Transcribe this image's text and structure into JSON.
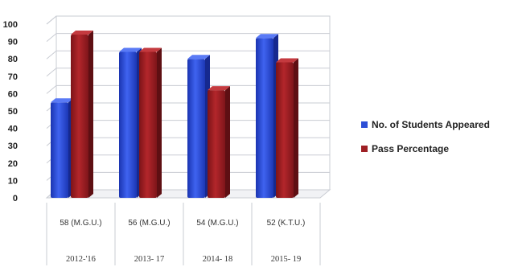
{
  "chart_data": {
    "type": "bar",
    "categories": [
      {
        "line1": "58 (M.G.U.)",
        "line2": "2012-'16"
      },
      {
        "line1": "56 (M.G.U.)",
        "line2": "2013- 17"
      },
      {
        "line1": "54 (M.G.U.)",
        "line2": "2014- 18"
      },
      {
        "line1": "52 (K.T.U.)",
        "line2": "2015- 19"
      }
    ],
    "series": [
      {
        "name": "No. of Students Appeared",
        "color": "#2d4fd6",
        "values": [
          55,
          84,
          80,
          92
        ]
      },
      {
        "name": "Pass Percentage",
        "color": "#9e1f24",
        "values": [
          94,
          84,
          62,
          78
        ]
      }
    ],
    "ylim": [
      0,
      100
    ],
    "yticks": [
      0,
      10,
      20,
      30,
      40,
      50,
      60,
      70,
      80,
      90,
      100
    ],
    "grid": true,
    "legend_position": "right",
    "title": "",
    "xlabel": "",
    "ylabel": ""
  }
}
